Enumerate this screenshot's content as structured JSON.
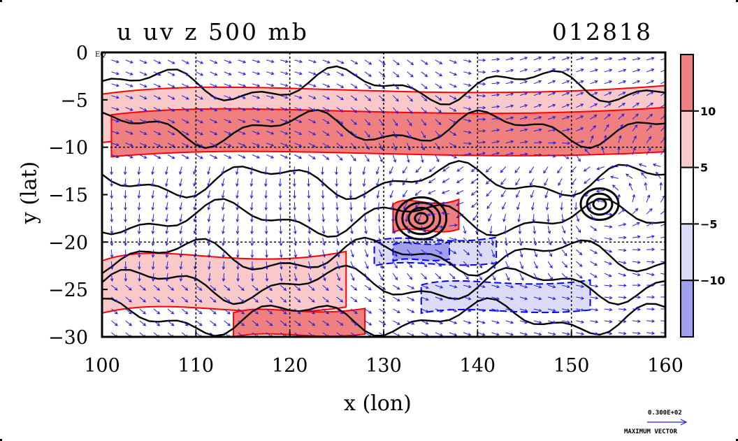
{
  "page": {
    "title": "u uv z 500 mb",
    "date_code": "012818",
    "vector_scale_value": "0.300E+02",
    "vector_scale_label": "MAXIMUM VECTOR"
  },
  "chart_data": {
    "type": "heatmap",
    "xlabel": "x (lon)",
    "ylabel": "y (lat)",
    "xlim": [
      100,
      160
    ],
    "ylim": [
      -30,
      0
    ],
    "xticks": [
      100,
      110,
      120,
      130,
      140,
      150,
      160
    ],
    "yticks": [
      {
        "value": 0,
        "label": "0 EQ"
      },
      {
        "value": -5,
        "label": "−5"
      },
      {
        "value": -10,
        "label": "−10"
      },
      {
        "value": -15,
        "label": "−15"
      },
      {
        "value": -20,
        "label": "−20"
      },
      {
        "value": -25,
        "label": "−25"
      },
      {
        "value": -30,
        "label": "−30"
      }
    ],
    "grid_lines_x": [
      110,
      120,
      130,
      140,
      150
    ],
    "grid_lines_y": [
      -10,
      -20
    ],
    "grid": "dashed",
    "colorbar": {
      "ticks": [
        "10",
        "5",
        "−5",
        "−10"
      ],
      "bands": [
        {
          "range": "> 10",
          "color": "#f08080"
        },
        {
          "range": "5 to 10",
          "color": "#f9c8c8"
        },
        {
          "range": "-5 to 5",
          "color": "#ffffff"
        },
        {
          "range": "-10 to -5",
          "color": "#dcdcf8"
        },
        {
          "range": "< -10",
          "color": "#a0a0ee"
        }
      ]
    },
    "colors": {
      "strong_westerly": "#f08080",
      "weak_westerly": "#f9c8c8",
      "weak_easterly": "#dcdcf8",
      "strong_easterly": "#a0a0ee",
      "positive_contour": "#ff0000",
      "negative_contour": "#0000ff",
      "vectors": "#2020e0",
      "height_contour": "#000000"
    },
    "u_bands": [
      {
        "band": "weak_westerly",
        "lon": [
          100,
          160
        ],
        "lat": [
          -9.5,
          -3.5
        ]
      },
      {
        "band": "strong_westerly",
        "lon": [
          101,
          160
        ],
        "lat": [
          -11,
          -5.8
        ]
      },
      {
        "band": "weak_westerly",
        "lon": [
          100,
          126
        ],
        "lat": [
          -27.5,
          -21
        ]
      },
      {
        "band": "strong_westerly",
        "lon": [
          114,
          128
        ],
        "lat": [
          -30,
          -27
        ]
      },
      {
        "band": "strong_westerly",
        "lon": [
          131,
          138
        ],
        "lat": [
          -19,
          -15.5
        ]
      },
      {
        "band": "weak_easterly",
        "lon": [
          129,
          142
        ],
        "lat": [
          -22.5,
          -19.5
        ]
      },
      {
        "band": "weak_easterly",
        "lon": [
          134,
          152
        ],
        "lat": [
          -27.5,
          -24
        ]
      },
      {
        "band": "strong_easterly",
        "lon": [
          131,
          137
        ],
        "lat": [
          -22,
          -20
        ]
      }
    ],
    "height_rings": [
      {
        "lon": 134,
        "lat": -17.5,
        "rings": 4
      },
      {
        "lon": 153,
        "lat": -16,
        "rings": 3
      }
    ],
    "vector_field": "westerly north of 12S, cyclonic circulations near (134E, 17.5S) and (153E, 16S), northwesterly flow south of 25S"
  }
}
